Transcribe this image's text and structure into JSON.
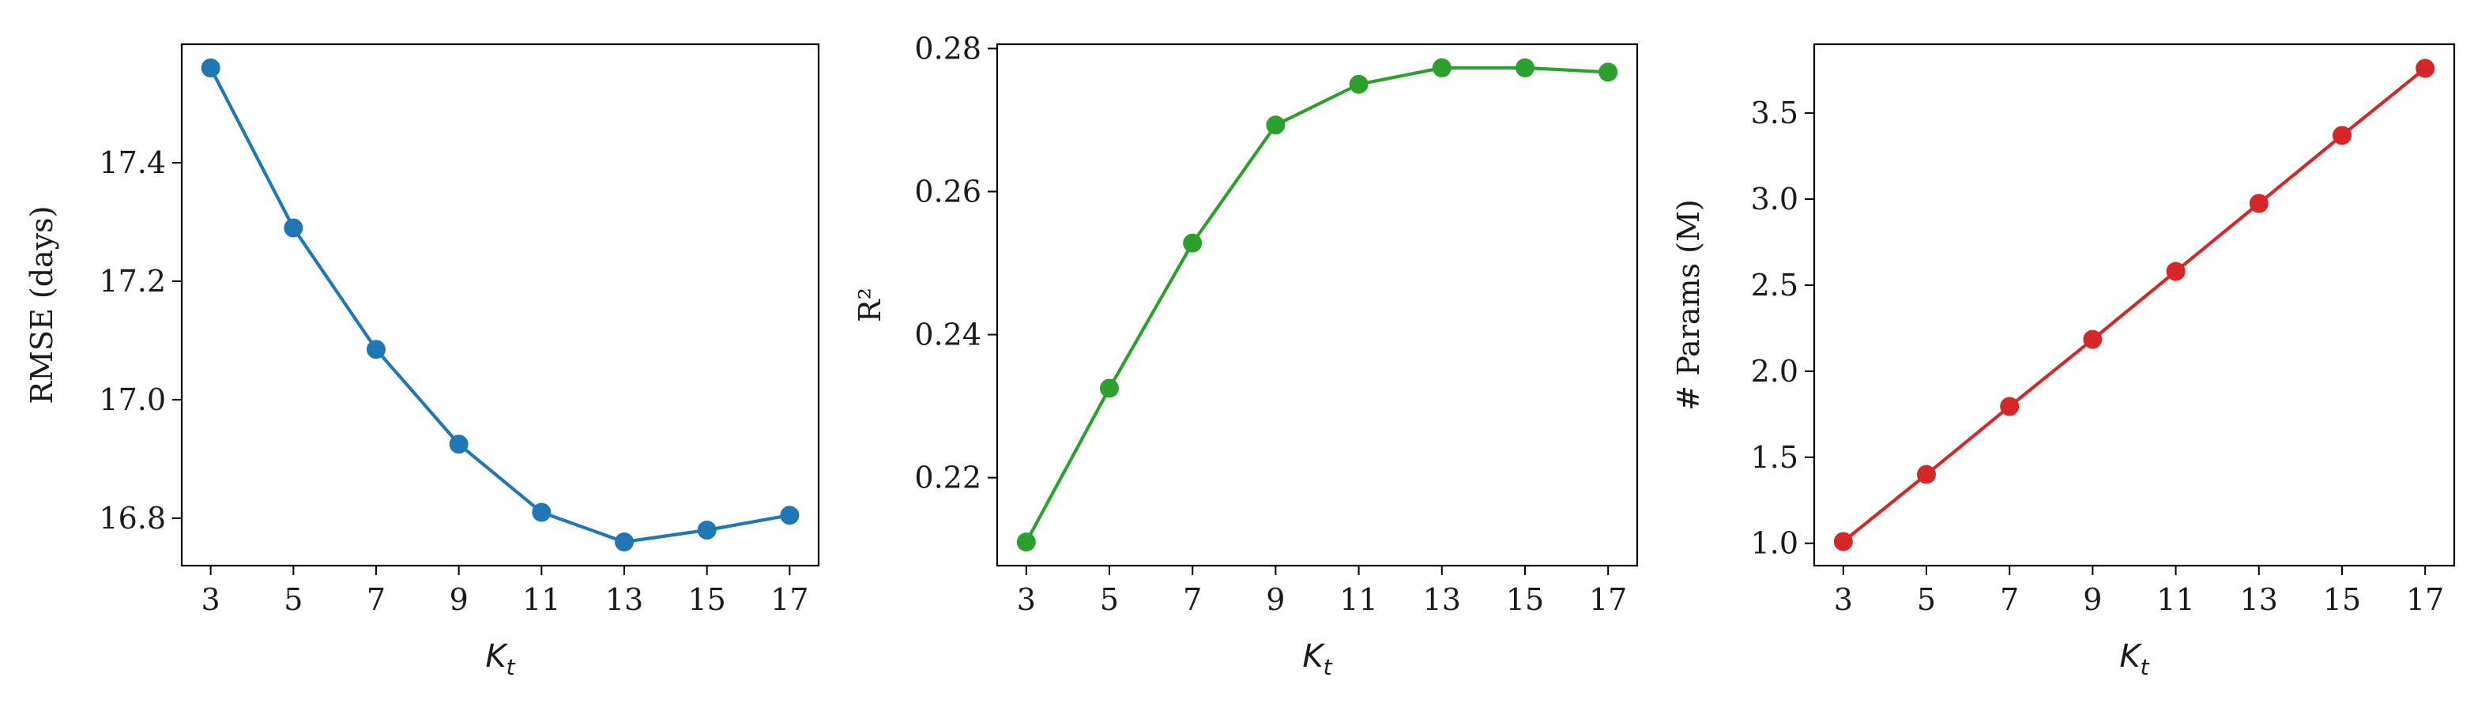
{
  "chart_data": [
    {
      "type": "line",
      "xlabel": "K_t",
      "xlabel_var": "K",
      "xlabel_sub": "t",
      "ylabel": "RMSE (days)",
      "x": [
        3,
        5,
        7,
        9,
        11,
        13,
        15,
        17
      ],
      "x_ticks": [
        "3",
        "5",
        "7",
        "9",
        "11",
        "13",
        "15",
        "17"
      ],
      "xlim": [
        2.3,
        17.7
      ],
      "ylim": [
        16.72,
        17.6
      ],
      "y_ticks": [
        16.8,
        17.0,
        17.2,
        17.4
      ],
      "y_tick_labels": [
        "16.8",
        "17.0",
        "17.2",
        "17.4"
      ],
      "series": [
        {
          "color": "#1f77b4",
          "values": [
            17.56,
            17.29,
            17.085,
            16.925,
            16.81,
            16.76,
            16.78,
            16.805
          ]
        }
      ],
      "grid": false
    },
    {
      "type": "line",
      "xlabel": "K_t",
      "xlabel_var": "K",
      "xlabel_sub": "t",
      "ylabel": "R²",
      "x": [
        3,
        5,
        7,
        9,
        11,
        13,
        15,
        17
      ],
      "x_ticks": [
        "3",
        "5",
        "7",
        "9",
        "11",
        "13",
        "15",
        "17"
      ],
      "xlim": [
        2.3,
        17.7
      ],
      "ylim": [
        0.2077,
        0.2806
      ],
      "y_ticks": [
        0.22,
        0.24,
        0.26,
        0.28
      ],
      "y_tick_labels": [
        "0.22",
        "0.24",
        "0.26",
        "0.28"
      ],
      "series": [
        {
          "color": "#2ca02c",
          "values": [
            0.211,
            0.2325,
            0.2528,
            0.2693,
            0.275,
            0.2773,
            0.2773,
            0.2767
          ]
        }
      ],
      "grid": false
    },
    {
      "type": "line",
      "xlabel": "K_t",
      "xlabel_var": "K",
      "xlabel_sub": "t",
      "ylabel": "# Params (M)",
      "x": [
        3,
        5,
        7,
        9,
        11,
        13,
        15,
        17
      ],
      "x_ticks": [
        "3",
        "5",
        "7",
        "9",
        "11",
        "13",
        "15",
        "17"
      ],
      "xlim": [
        2.3,
        17.7
      ],
      "ylim": [
        0.87,
        3.9
      ],
      "y_ticks": [
        1.0,
        1.5,
        2.0,
        2.5,
        3.0,
        3.5
      ],
      "y_tick_labels": [
        "1.0",
        "1.5",
        "2.0",
        "2.5",
        "3.0",
        "3.5"
      ],
      "series": [
        {
          "color": "#d62728",
          "values": [
            1.01,
            1.4,
            1.795,
            2.185,
            2.58,
            2.975,
            3.37,
            3.76
          ]
        }
      ],
      "grid": false
    }
  ]
}
